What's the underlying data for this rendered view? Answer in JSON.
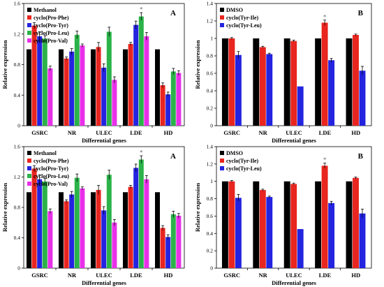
{
  "colors": {
    "Methanol": "#000000",
    "DMSO": "#000000",
    "cyclo(Pro-Phe)": "#e8251f",
    "cyclo(Pro-Tyr)": "#2323e0",
    "cyclo(Pro-Leu)": "#2bb34a",
    "cyclo(Pro-Val)": "#e830e8",
    "cyclo(Tyr-Ile)": "#e8251f",
    "cyclo(Tyr-Leu)": "#2323e0"
  },
  "chart_data": [
    {
      "type": "bar",
      "panel": "A",
      "categories": [
        "GSRC",
        "NR",
        "ULEC",
        "LDE",
        "HD"
      ],
      "xlabel": "Differential genes",
      "ylabel": "Relative expression",
      "ylim": [
        0,
        1.6
      ],
      "yticks": [
        "0",
        "0.4",
        "0.8",
        "1.2",
        "1.6"
      ],
      "series": [
        {
          "name": "Methanol",
          "values": [
            1.0,
            1.0,
            1.0,
            1.0,
            1.0
          ],
          "errors": [
            0.0,
            0.0,
            0.0,
            0.0,
            0.0
          ]
        },
        {
          "name": "cyclo(Pro-Phe)",
          "values": [
            1.31,
            0.88,
            1.03,
            1.07,
            0.53
          ],
          "errors": [
            0.04,
            0.02,
            0.06,
            0.02,
            0.03
          ]
        },
        {
          "name": "cyclo(Pro-Tyr)",
          "values": [
            1.17,
            0.97,
            0.76,
            1.32,
            0.41
          ],
          "errors": [
            0.06,
            0.04,
            0.05,
            0.05,
            0.03
          ]
        },
        {
          "name": "cyclo(Pro-Leu)",
          "values": [
            1.14,
            1.19,
            1.23,
            1.43,
            0.71
          ],
          "errors": [
            0.04,
            0.05,
            0.06,
            0.05,
            0.04
          ]
        },
        {
          "name": "cyclo(Pro-Val)",
          "values": [
            0.75,
            1.05,
            0.6,
            1.17,
            0.69
          ],
          "errors": [
            0.03,
            0.02,
            0.04,
            0.05,
            0.03
          ]
        }
      ],
      "annotations": [
        {
          "category": "LDE",
          "series": "cyclo(Pro-Leu)",
          "text": "*"
        }
      ]
    },
    {
      "type": "bar",
      "panel": "B",
      "categories": [
        "GSRC",
        "NR",
        "ULEC",
        "LDE",
        "HD"
      ],
      "xlabel": "Differential genes",
      "ylabel": "Relative expression",
      "ylim": [
        0,
        1.4
      ],
      "yticks": [
        "0",
        "0.2",
        "0.4",
        "0.6",
        "0.8",
        "1",
        "1.2",
        "1.4"
      ],
      "series": [
        {
          "name": "DMSO",
          "values": [
            1.0,
            1.0,
            1.0,
            1.0,
            1.0
          ],
          "errors": [
            0.0,
            0.0,
            0.0,
            0.0,
            0.0
          ]
        },
        {
          "name": "cyclo(Tyr-Ile)",
          "values": [
            1.0,
            0.9,
            0.97,
            1.18,
            1.04
          ],
          "errors": [
            0.01,
            0.01,
            0.01,
            0.03,
            0.01
          ]
        },
        {
          "name": "cyclo(Tyr-Leu)",
          "values": [
            0.81,
            0.82,
            0.45,
            0.75,
            0.63
          ],
          "errors": [
            0.04,
            0.01,
            0.0,
            0.02,
            0.05
          ]
        }
      ],
      "annotations": [
        {
          "category": "LDE",
          "series": "cyclo(Tyr-Ile)",
          "text": "*"
        }
      ]
    },
    {
      "type": "bar",
      "panel": "A",
      "categories": [
        "GSRC",
        "NR",
        "ULEC",
        "LDE",
        "HD"
      ],
      "xlabel": "Differential genes",
      "ylabel": "Relative expression",
      "ylim": [
        0,
        1.6
      ],
      "yticks": [
        "0",
        "0.4",
        "0.8",
        "1.2",
        "1.6"
      ],
      "series": [
        {
          "name": "Methanol",
          "values": [
            1.0,
            1.0,
            1.0,
            1.0,
            1.0
          ],
          "errors": [
            0.0,
            0.0,
            0.0,
            0.0,
            0.0
          ]
        },
        {
          "name": "cyclo(Pro-Phe)",
          "values": [
            1.31,
            0.88,
            1.03,
            1.07,
            0.53
          ],
          "errors": [
            0.04,
            0.02,
            0.06,
            0.02,
            0.03
          ]
        },
        {
          "name": "cyclo(Pro-Tyr)",
          "values": [
            1.17,
            0.97,
            0.76,
            1.32,
            0.41
          ],
          "errors": [
            0.06,
            0.04,
            0.05,
            0.05,
            0.03
          ]
        },
        {
          "name": "cyclo(Pro-Leu)",
          "values": [
            1.14,
            1.19,
            1.23,
            1.43,
            0.71
          ],
          "errors": [
            0.04,
            0.05,
            0.06,
            0.05,
            0.04
          ]
        },
        {
          "name": "cyclo(Pro-Val)",
          "values": [
            0.75,
            1.05,
            0.6,
            1.17,
            0.69
          ],
          "errors": [
            0.03,
            0.02,
            0.04,
            0.05,
            0.03
          ]
        }
      ],
      "annotations": [
        {
          "category": "LDE",
          "series": "cyclo(Pro-Leu)",
          "text": "*"
        }
      ]
    },
    {
      "type": "bar",
      "panel": "B",
      "categories": [
        "GSRC",
        "NR",
        "ULEC",
        "LDE",
        "HD"
      ],
      "xlabel": "Differential genes",
      "ylabel": "Relative expression",
      "ylim": [
        0,
        1.4
      ],
      "yticks": [
        "0",
        "0.2",
        "0.4",
        "0.6",
        "0.8",
        "1",
        "1.2",
        "1.4"
      ],
      "series": [
        {
          "name": "DMSO",
          "values": [
            1.0,
            1.0,
            1.0,
            1.0,
            1.0
          ],
          "errors": [
            0.0,
            0.0,
            0.0,
            0.0,
            0.0
          ]
        },
        {
          "name": "cyclo(Tyr-Ile)",
          "values": [
            1.0,
            0.9,
            0.97,
            1.18,
            1.04
          ],
          "errors": [
            0.01,
            0.01,
            0.01,
            0.03,
            0.01
          ]
        },
        {
          "name": "cyclo(Tyr-Leu)",
          "values": [
            0.81,
            0.82,
            0.45,
            0.75,
            0.63
          ],
          "errors": [
            0.04,
            0.01,
            0.0,
            0.02,
            0.05
          ]
        }
      ],
      "annotations": [
        {
          "category": "LDE",
          "series": "cyclo(Tyr-Ile)",
          "text": "*"
        }
      ]
    }
  ]
}
